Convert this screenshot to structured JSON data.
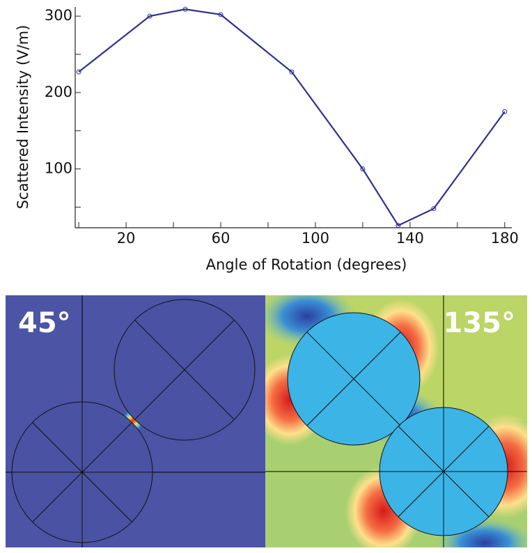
{
  "chart_data": {
    "type": "line",
    "x_label": "Angle of Rotation (degrees)",
    "y_label": "Scattered Intensity (V/m)",
    "x": [
      0,
      30,
      45,
      60,
      90,
      120,
      135,
      150,
      180
    ],
    "series": [
      {
        "color": "#2e3192",
        "values": [
          227,
          300,
          309,
          302,
          227,
          100,
          26,
          48,
          175
        ]
      }
    ],
    "xlim": [
      -1.5,
      183
    ],
    "xticks": [
      20,
      60,
      100,
      140,
      180
    ],
    "xminorticks": [
      0,
      40,
      80,
      120,
      160
    ],
    "ylim": [
      23,
      312
    ],
    "yticks": [
      100,
      200,
      300
    ],
    "yminorticks": [
      50,
      150,
      250
    ],
    "grid": false
  },
  "panels": [
    {
      "label": "45°"
    },
    {
      "label": "135°"
    }
  ]
}
